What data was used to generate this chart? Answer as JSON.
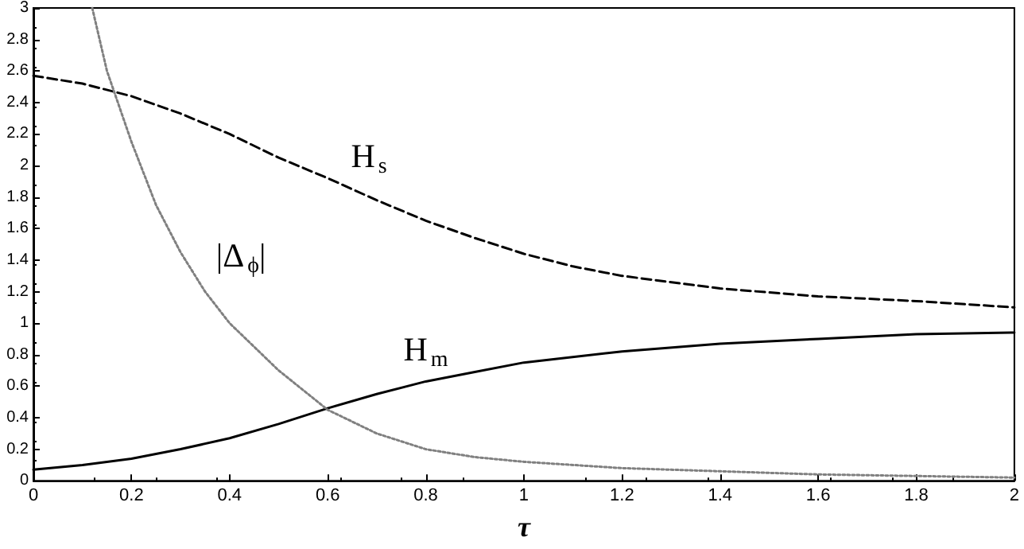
{
  "chart_data": {
    "type": "line",
    "xlabel": "τ",
    "xlim": [
      0,
      2
    ],
    "xticks": [
      0,
      0.2,
      0.4,
      0.6,
      0.8,
      1,
      1.2,
      1.4,
      1.6,
      1.8,
      2
    ],
    "ylim": [
      0,
      3
    ],
    "yticks": [
      0,
      0.2,
      0.4,
      0.6,
      0.8,
      1,
      1.2,
      1.4,
      1.6,
      1.8,
      2,
      2.2,
      2.4,
      2.6,
      2.8,
      3
    ],
    "grid": false,
    "marker": "none",
    "series": [
      {
        "name": "H$_{s}$",
        "color": "#000000",
        "line_style": "dashed",
        "x": [
          0,
          0.1,
          0.2,
          0.3,
          0.4,
          0.5,
          0.6,
          0.7,
          0.8,
          0.9,
          1,
          1.1,
          1.2,
          1.4,
          1.6,
          1.8,
          2
        ],
        "values": [
          2.57,
          2.52,
          2.44,
          2.33,
          2.2,
          2.05,
          1.92,
          1.78,
          1.65,
          1.54,
          1.44,
          1.36,
          1.3,
          1.22,
          1.17,
          1.14,
          1.1
        ]
      },
      {
        "name": "H$_{m}$",
        "color": "#000000",
        "line_style": "solid",
        "x": [
          0,
          0.1,
          0.2,
          0.3,
          0.4,
          0.5,
          0.6,
          0.7,
          0.8,
          0.9,
          1,
          1.2,
          1.4,
          1.6,
          1.8,
          2
        ],
        "values": [
          0.07,
          0.1,
          0.14,
          0.2,
          0.27,
          0.36,
          0.46,
          0.55,
          0.63,
          0.69,
          0.75,
          0.82,
          0.87,
          0.9,
          0.93,
          0.94
        ]
      },
      {
        "name": "|Δ$_{ϕ}$|",
        "color": "#808080",
        "line_style": "dotted",
        "x": [
          0.12,
          0.15,
          0.2,
          0.25,
          0.3,
          0.35,
          0.4,
          0.5,
          0.6,
          0.7,
          0.8,
          0.9,
          1,
          1.2,
          1.4,
          1.6,
          1.8,
          2
        ],
        "values": [
          3,
          2.6,
          2.15,
          1.75,
          1.45,
          1.2,
          1,
          0.7,
          0.45,
          0.3,
          0.2,
          0.15,
          0.12,
          0.08,
          0.06,
          0.04,
          0.03,
          0.02
        ]
      }
    ]
  }
}
